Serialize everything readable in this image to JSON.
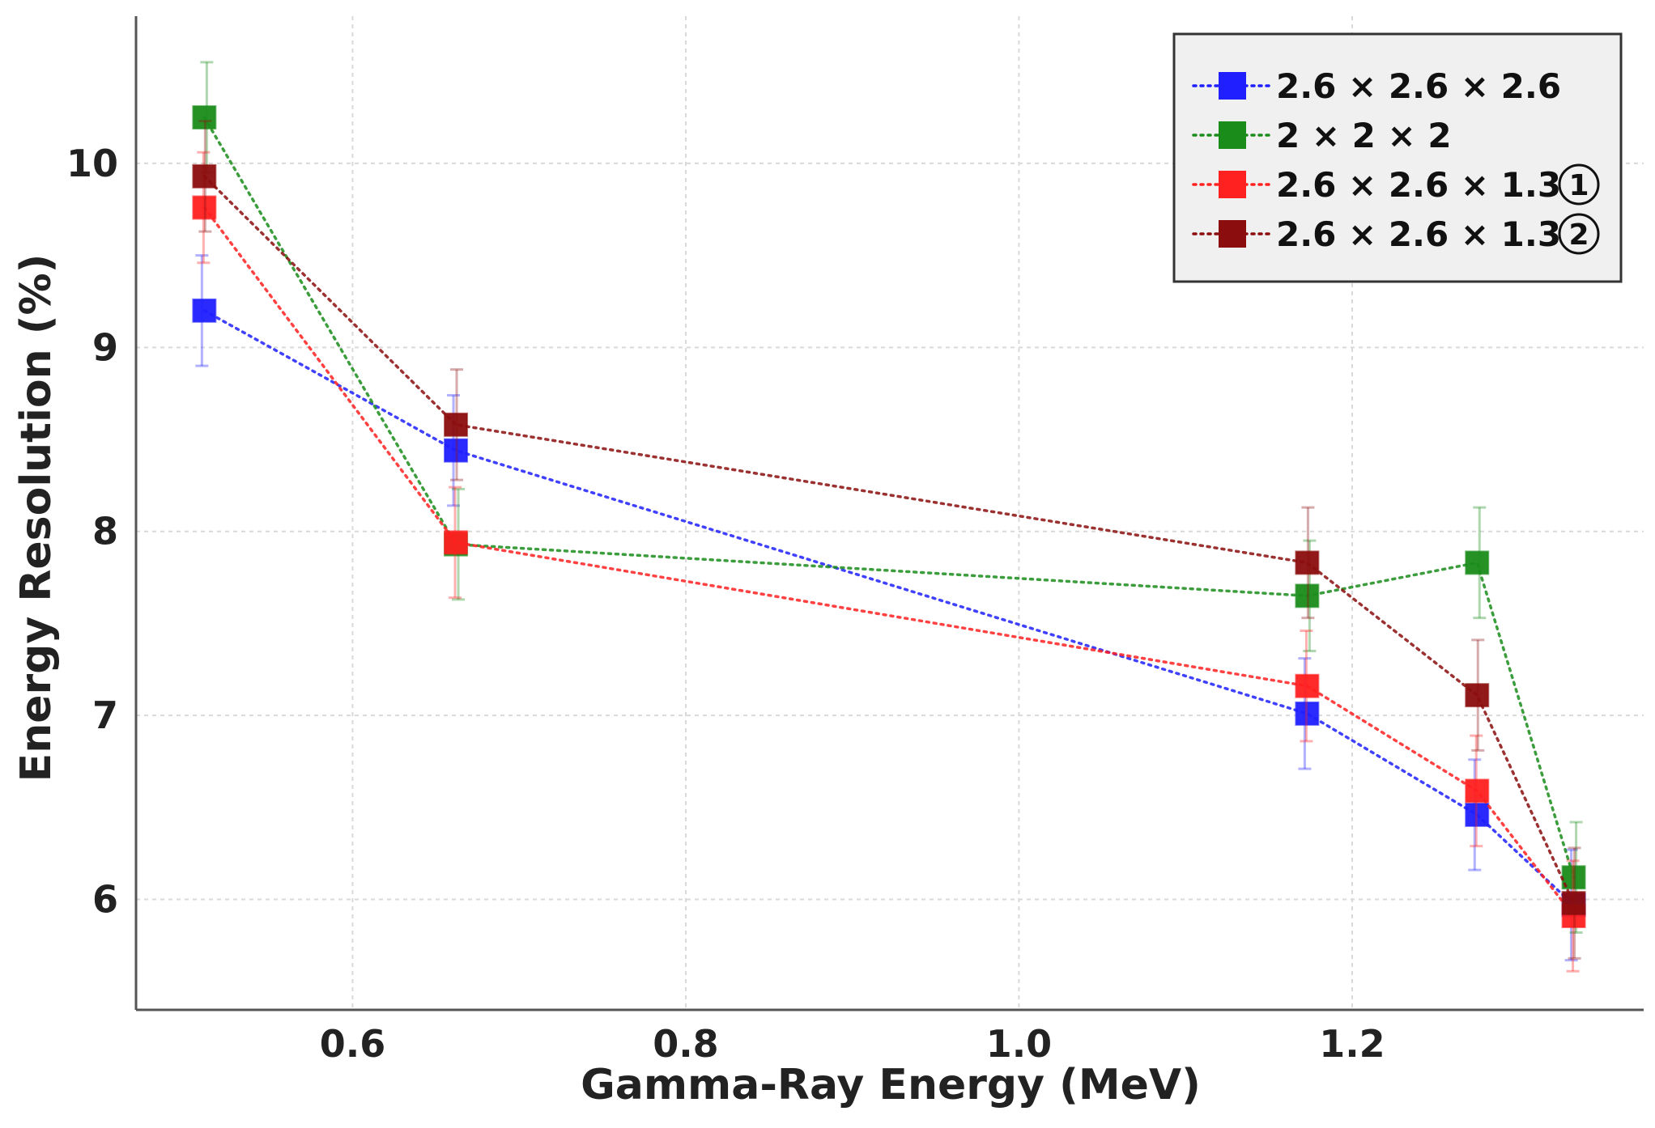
{
  "chart_data": {
    "type": "line",
    "title": "",
    "xlabel": "Gamma-Ray Energy (MeV)",
    "ylabel": "Energy Resolution (%)",
    "xlim": [
      0.47,
      1.375
    ],
    "ylim": [
      5.4,
      10.8
    ],
    "xticks": [
      0.6,
      0.8,
      1.0,
      1.2
    ],
    "xtick_labels": [
      "0.6",
      "0.8",
      "1.0",
      "1.2"
    ],
    "yticks": [
      6,
      7,
      8,
      9,
      10
    ],
    "ytick_labels": [
      "6",
      "7",
      "8",
      "9",
      "10"
    ],
    "grid": true,
    "legend_position": "top-right",
    "x": [
      0.511,
      0.662,
      1.173,
      1.275,
      1.333
    ],
    "series": [
      {
        "name": "2.6 × 2.6 × 2.6",
        "circled": "",
        "color": "#1f1fff",
        "values": [
          9.2,
          8.44,
          7.01,
          6.46,
          5.97
        ],
        "errors": [
          0.3,
          0.3,
          0.3,
          0.3,
          0.3
        ]
      },
      {
        "name": "2 × 2 × 2",
        "circled": "",
        "color": "#1a8c1a",
        "values": [
          10.25,
          7.93,
          7.65,
          7.83,
          6.12
        ],
        "errors": [
          0.3,
          0.3,
          0.3,
          0.3,
          0.3
        ]
      },
      {
        "name": "2.6 × 2.6 × 1.3",
        "circled": "1",
        "color": "#ff2020",
        "values": [
          9.76,
          7.94,
          7.16,
          6.59,
          5.91
        ],
        "errors": [
          0.3,
          0.3,
          0.3,
          0.3,
          0.3
        ]
      },
      {
        "name": "2.6 × 2.6 × 1.3",
        "circled": "2",
        "color": "#8b0d0d",
        "values": [
          9.93,
          8.58,
          7.83,
          7.11,
          5.98
        ],
        "errors": [
          0.3,
          0.3,
          0.3,
          0.3,
          0.3
        ]
      }
    ]
  }
}
